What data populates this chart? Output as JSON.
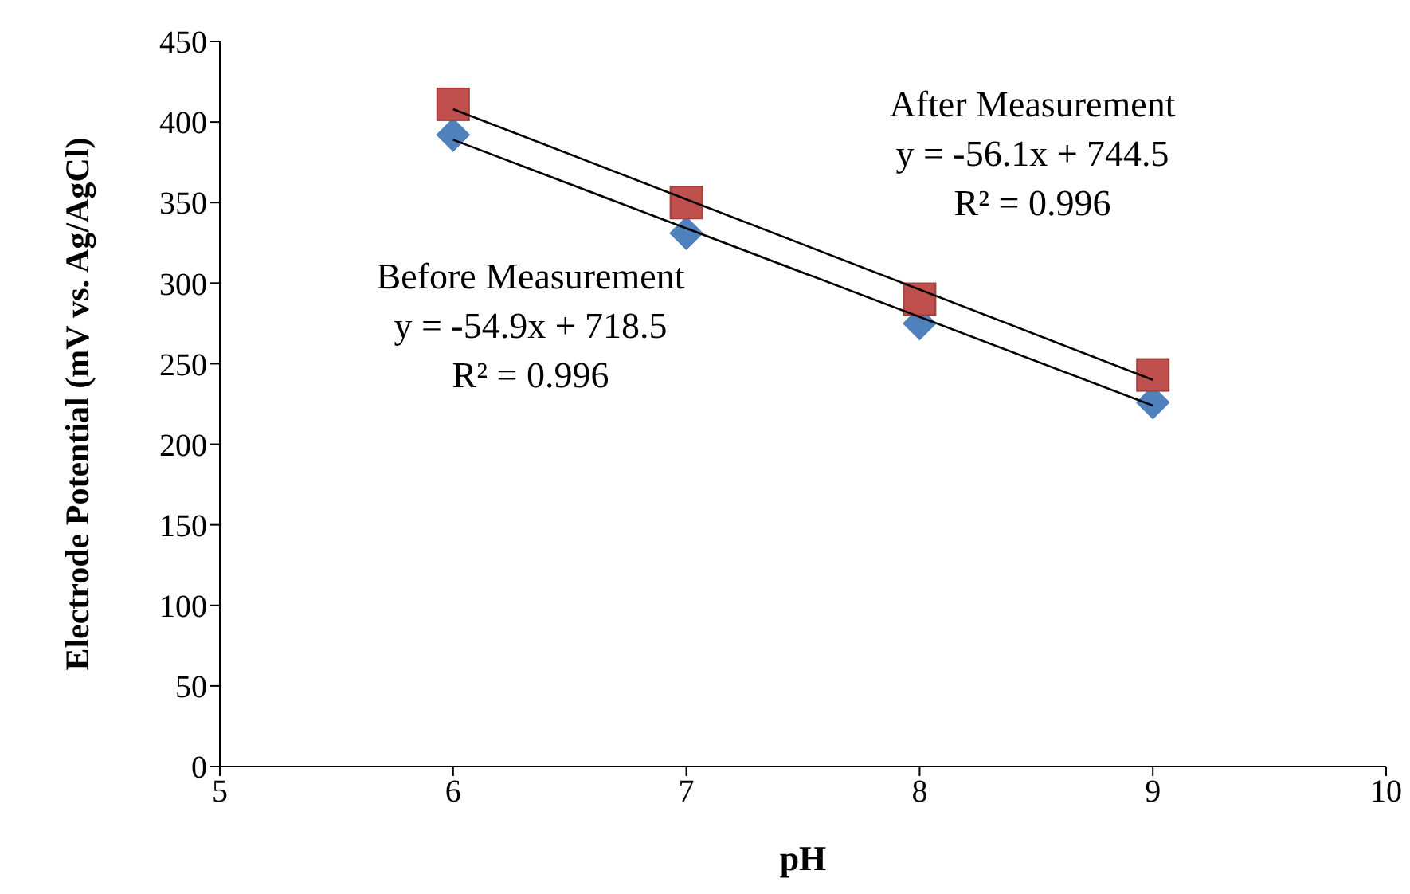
{
  "chart_data": {
    "type": "scatter",
    "xlabel": "pH",
    "ylabel": "Electrode Potential (mV vs. Ag/AgCl)",
    "xlim": [
      5,
      10
    ],
    "xticks": [
      5,
      6,
      7,
      8,
      9,
      10
    ],
    "ylim": [
      0,
      450
    ],
    "yticks": [
      0,
      50,
      100,
      150,
      200,
      250,
      300,
      350,
      400,
      450
    ],
    "grid": false,
    "legend": false,
    "series": [
      {
        "color": "#4f81bd",
        "marker": "diamond",
        "x": [
          6,
          7,
          8,
          9
        ],
        "values": [
          392,
          331,
          275,
          226
        ]
      },
      {
        "color": "#c0504d",
        "marker": "square",
        "x": [
          6,
          7,
          8,
          9
        ],
        "values": [
          411,
          350,
          290,
          243
        ]
      },
      {
        "type": "line",
        "color": "#000000",
        "marker": "none",
        "x": [
          6,
          9
        ],
        "values": [
          389,
          224
        ]
      },
      {
        "type": "line",
        "color": "#000000",
        "marker": "none",
        "x": [
          6,
          9
        ],
        "values": [
          408,
          240
        ]
      }
    ],
    "annotations": [
      "After Measurement\ny = -56.1x + 744.5\nR² = 0.996",
      "Before Measurement\ny = -54.9x + 718.5\nR² = 0.996"
    ]
  }
}
